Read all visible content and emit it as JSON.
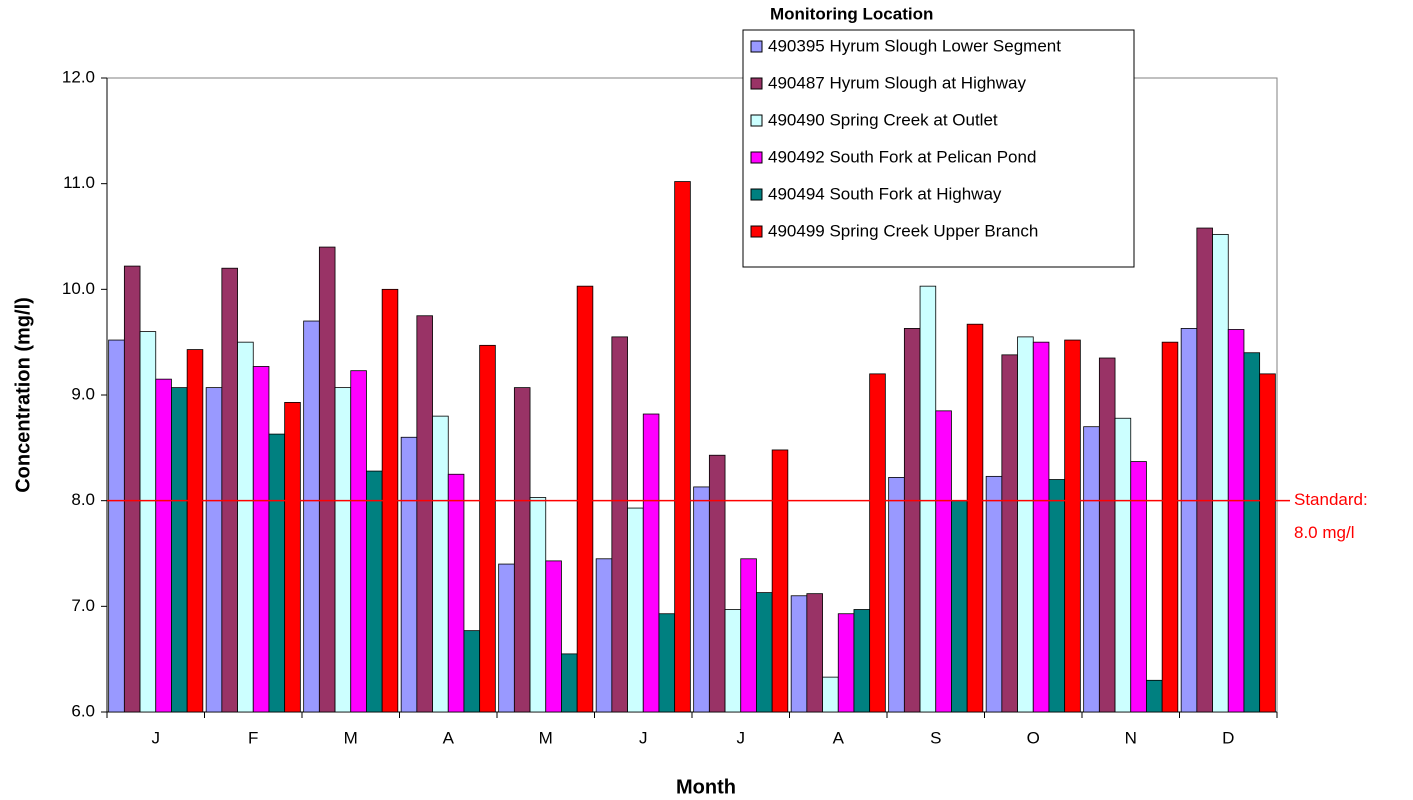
{
  "chart_data": {
    "type": "bar",
    "x_label": "Month",
    "y_label": "Concentration (mg/l)",
    "legend_title": "Monitoring Location",
    "legend_position": "upper right",
    "categories": [
      "J",
      "F",
      "M",
      "A",
      "M",
      "J",
      "J",
      "A",
      "S",
      "O",
      "N",
      "D"
    ],
    "series": [
      {
        "name": "490395 Hyrum Slough Lower Segment",
        "color": "#9999ff",
        "values": [
          9.52,
          9.07,
          9.7,
          8.6,
          7.4,
          7.45,
          8.13,
          7.1,
          8.22,
          8.23,
          8.7,
          9.63
        ]
      },
      {
        "name": "490487 Hyrum Slough at Highway",
        "color": "#993366",
        "values": [
          10.22,
          10.2,
          10.4,
          9.75,
          9.07,
          9.55,
          8.43,
          7.12,
          9.63,
          9.38,
          9.35,
          10.58
        ]
      },
      {
        "name": "490490 Spring Creek at Outlet",
        "color": "#ccffff",
        "values": [
          9.6,
          9.5,
          9.07,
          8.8,
          8.03,
          7.93,
          6.97,
          6.33,
          10.03,
          9.55,
          8.78,
          10.52
        ]
      },
      {
        "name": "490492 South Fork at Pelican Pond",
        "color": "#ff00ff",
        "values": [
          9.15,
          9.27,
          9.23,
          8.25,
          7.43,
          8.82,
          7.45,
          6.93,
          8.85,
          9.5,
          8.37,
          9.62
        ]
      },
      {
        "name": "490494 South Fork at Highway",
        "color": "#008080",
        "values": [
          9.07,
          8.63,
          8.28,
          6.77,
          6.55,
          6.93,
          7.13,
          6.97,
          8.0,
          8.2,
          6.3,
          9.4
        ]
      },
      {
        "name": "490499 Spring Creek Upper Branch",
        "color": "#ff0000",
        "values": [
          9.43,
          8.93,
          10.0,
          9.47,
          10.03,
          11.02,
          8.48,
          9.2,
          9.67,
          9.52,
          9.5,
          9.2
        ]
      }
    ],
    "ylim": [
      6.0,
      12.0
    ],
    "yticks": [
      {
        "value": 6,
        "label": "6.0"
      },
      {
        "value": 7,
        "label": "7.0"
      },
      {
        "value": 8,
        "label": "8.0"
      },
      {
        "value": 9,
        "label": "9.0"
      },
      {
        "value": 10,
        "label": "10.0"
      },
      {
        "value": 11,
        "label": "11.0"
      },
      {
        "value": 12,
        "label": "12.0"
      }
    ],
    "grid": false,
    "reference_line": {
      "value": 8.0,
      "color": "#ff0000",
      "label": [
        "Standard:",
        "8.0 mg/l"
      ]
    }
  }
}
